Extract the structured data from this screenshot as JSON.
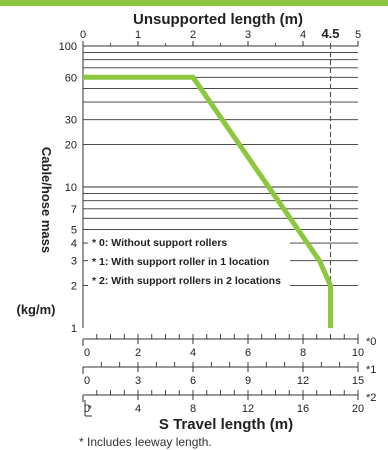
{
  "chart_data": {
    "type": "line",
    "title": "Unsupported length (m)",
    "ylabel": "Cable/hose mass",
    "yunit": "(kg/m)",
    "xlabel": "S Travel length (m)",
    "footnote": "* Includes leeway length.",
    "log_y": true,
    "ylim": [
      1,
      100
    ],
    "xlim_top": [
      0,
      5
    ],
    "top_ticks": [
      "0",
      "1",
      "2",
      "3",
      "4",
      "5"
    ],
    "top_marker": {
      "value": 4.5,
      "label": "4.5"
    },
    "y_ticks": [
      {
        "value": 1,
        "label": "1"
      },
      {
        "value": 2,
        "label": "2"
      },
      {
        "value": 3,
        "label": "3"
      },
      {
        "value": 4,
        "label": "4"
      },
      {
        "value": 5,
        "label": "5"
      },
      {
        "value": 7,
        "label": "7"
      },
      {
        "value": 10,
        "label": "10"
      },
      {
        "value": 20,
        "label": "20"
      },
      {
        "value": 30,
        "label": "30"
      },
      {
        "value": 60,
        "label": "60"
      },
      {
        "value": 100,
        "label": "100"
      }
    ],
    "y_gridlines": [
      2,
      3,
      4,
      5,
      6,
      7,
      8,
      9,
      10,
      20,
      30,
      40,
      50,
      60,
      70,
      80,
      90,
      100
    ],
    "series": [
      {
        "x": [
          0,
          2,
          4.3,
          4.5,
          4.5
        ],
        "y": [
          60,
          60,
          3.0,
          2.0,
          1.0
        ],
        "color": "#8dc63f"
      }
    ],
    "legend": [
      "* 0: Without support rollers",
      "* 1: With support roller in 1 location",
      "* 2: With support rollers in 2 locations"
    ],
    "bottom_axes": [
      {
        "marker": "*0",
        "max": 10,
        "ticks": [
          "0",
          "2",
          "4",
          "6",
          "8",
          "10"
        ],
        "minor": 20
      },
      {
        "marker": "*1",
        "max": 15,
        "ticks": [
          "0",
          "3",
          "6",
          "9",
          "12",
          "15"
        ],
        "minor": 15
      },
      {
        "marker": "*2",
        "max": 20,
        "ticks": [
          "0",
          "4",
          "8",
          "12",
          "16",
          "20"
        ],
        "minor": 20
      }
    ],
    "leeway_mark": "*",
    "colors": {
      "line": "#8dc63f",
      "band": "#8dc63f",
      "grid": "#333333",
      "marker": "#555555"
    }
  }
}
